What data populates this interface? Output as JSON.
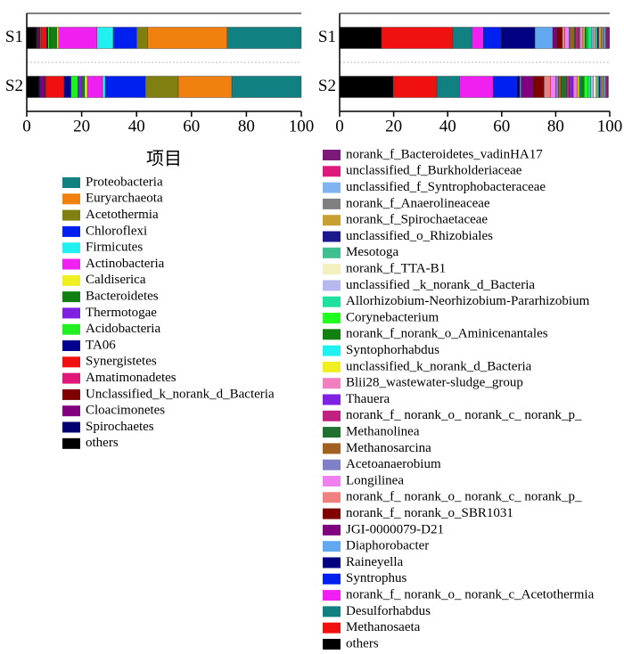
{
  "chart_data": [
    {
      "type": "bar",
      "orientation": "horizontal",
      "stacked": true,
      "categories": [
        "S1",
        "S2"
      ],
      "xlim": [
        0,
        100
      ],
      "xticks": [
        0,
        20,
        40,
        60,
        80,
        100
      ],
      "xlabel": "项目",
      "series": [
        {
          "name": "Proteobacteria",
          "color": "#108080",
          "values": [
            27,
            25.3
          ]
        },
        {
          "name": "Euryarchaeota",
          "color": "#f08010",
          "values": [
            29,
            19.5
          ]
        },
        {
          "name": "Acetothermia",
          "color": "#808010",
          "values": [
            4,
            12
          ]
        },
        {
          "name": "Chloroflexi",
          "color": "#0020f0",
          "values": [
            8.5,
            14.6
          ]
        },
        {
          "name": "Firmicutes",
          "color": "#20f0f0",
          "values": [
            5.9,
            1
          ]
        },
        {
          "name": "Actinobacteria",
          "color": "#f020f0",
          "values": [
            14,
            5.5
          ]
        },
        {
          "name": "Caldiserica",
          "color": "#f0f020",
          "values": [
            0.6,
            1
          ]
        },
        {
          "name": "Bacteroidetes",
          "color": "#108010",
          "values": [
            2.5,
            1
          ]
        },
        {
          "name": "Thermotogae",
          "color": "#8020e0",
          "values": [
            0.3,
            1.5
          ]
        },
        {
          "name": "Acidobacteria",
          "color": "#20f020",
          "values": [
            0.5,
            2.5
          ]
        },
        {
          "name": "TA06",
          "color": "#000090",
          "values": [
            0.4,
            2.5
          ]
        },
        {
          "name": "Synergistetes",
          "color": "#f01010",
          "values": [
            2,
            6.5
          ]
        },
        {
          "name": "Amatimonadetes",
          "color": "#e0187a",
          "values": [
            0.5,
            0.3
          ]
        },
        {
          "name": "Unclassified_k_norank_d_Bacteria",
          "color": "#800000",
          "values": [
            0.6,
            0.5
          ]
        },
        {
          "name": "Cloacimonetes",
          "color": "#800080",
          "values": [
            0.4,
            1.5
          ]
        },
        {
          "name": "Spirochaetes",
          "color": "#000070",
          "values": [
            0.3,
            0.3
          ]
        },
        {
          "name": "others",
          "color": "#000000",
          "values": [
            3.5,
            4.5
          ]
        }
      ]
    },
    {
      "type": "bar",
      "orientation": "horizontal",
      "stacked": true,
      "categories": [
        "S1",
        "S2"
      ],
      "xlim": [
        0,
        100
      ],
      "xticks": [
        0,
        20,
        40,
        60,
        80,
        100
      ],
      "series": [
        {
          "name": "norank_f_Bacteroidetes_vadinHA17",
          "color": "#7b1a7b",
          "values": [
            1,
            0.5
          ]
        },
        {
          "name": "unclassified_f_Burkholderiaceae",
          "color": "#e0187a",
          "values": [
            0.5,
            0.5
          ]
        },
        {
          "name": "unclassified_f_Syntrophobacteraceae",
          "color": "#7fb4f0",
          "values": [
            0.5,
            0.5
          ]
        },
        {
          "name": "norank_f_Anaerolineaceae",
          "color": "#808080",
          "values": [
            1,
            1
          ]
        },
        {
          "name": "norank_f_Spirochaetaceae",
          "color": "#c8a030",
          "values": [
            1,
            0.5
          ]
        },
        {
          "name": "unclassified_o_Rhizobiales",
          "color": "#1a1a8c",
          "values": [
            0.5,
            0.5
          ]
        },
        {
          "name": "Mesotoga",
          "color": "#40c090",
          "values": [
            1,
            1
          ]
        },
        {
          "name": "norank_f_TTA-B1",
          "color": "#f5f0c0",
          "values": [
            0.5,
            1
          ]
        },
        {
          "name": "unclassified _k_norank_d_Bacteria",
          "color": "#b8b8f0",
          "values": [
            0.5,
            1
          ]
        },
        {
          "name": "Allorhizobium-Neorhizobium-Pararhizobium",
          "color": "#20e0a0",
          "values": [
            1.5,
            1
          ]
        },
        {
          "name": "Corynebacterium",
          "color": "#20ff20",
          "values": [
            0.5,
            1.5
          ]
        },
        {
          "name": "norank_f_norank_o_Aminicenantales",
          "color": "#108010",
          "values": [
            0.5,
            1.5
          ]
        },
        {
          "name": "Syntophorhabdus",
          "color": "#20f0f0",
          "values": [
            0.5,
            0.5
          ]
        },
        {
          "name": "unclassified_k_norank_d_Bacteria",
          "color": "#f0f020",
          "values": [
            0.5,
            0.5
          ]
        },
        {
          "name": "Blii28_wastewater-sludge_group",
          "color": "#f080c0",
          "values": [
            1,
            1.5
          ]
        },
        {
          "name": "Thauera",
          "color": "#8020e0",
          "values": [
            0.5,
            1.5
          ]
        },
        {
          "name": "norank_f_ norank_o_ norank_c_ norank_p_",
          "color": "#c02080",
          "values": [
            1,
            1
          ]
        },
        {
          "name": "Methanolinea",
          "color": "#207030",
          "values": [
            0.5,
            2
          ]
        },
        {
          "name": "Methanosarcina",
          "color": "#a06020",
          "values": [
            1.5,
            1
          ]
        },
        {
          "name": "Acetoanaerobium",
          "color": "#8080c8",
          "values": [
            0.5,
            1
          ]
        },
        {
          "name": "Longilinea",
          "color": "#f080f0",
          "values": [
            1.5,
            2
          ]
        },
        {
          "name": "norank_f_ norank_o_ norank_c_ norank_p_",
          "color": "#f08080",
          "values": [
            1,
            2.3
          ]
        },
        {
          "name": "norank_f_ norank_o_SBR1031",
          "color": "#800000",
          "values": [
            2,
            4
          ]
        },
        {
          "name": "JGI-0000079-D21",
          "color": "#800080",
          "values": [
            1.5,
            4.5
          ]
        },
        {
          "name": "Diaphorobacter",
          "color": "#60a8f0",
          "values": [
            6.6,
            0.5
          ]
        },
        {
          "name": "Raineyella",
          "color": "#000080",
          "values": [
            12.5,
            1
          ]
        },
        {
          "name": "Syntrophus",
          "color": "#0020f0",
          "values": [
            6.6,
            8.9
          ]
        },
        {
          "name": "norank_f_ norank_o_ norank_c_Acetothermia",
          "color": "#f020f0",
          "values": [
            4.3,
            12.5
          ]
        },
        {
          "name": "Desulforhabdus",
          "color": "#108080",
          "values": [
            7,
            8.3
          ]
        },
        {
          "name": "Methanosaeta",
          "color": "#f01010",
          "values": [
            26.4,
            16.2
          ]
        },
        {
          "name": "others",
          "color": "#000000",
          "values": [
            15.5,
            19.8
          ]
        }
      ]
    }
  ]
}
